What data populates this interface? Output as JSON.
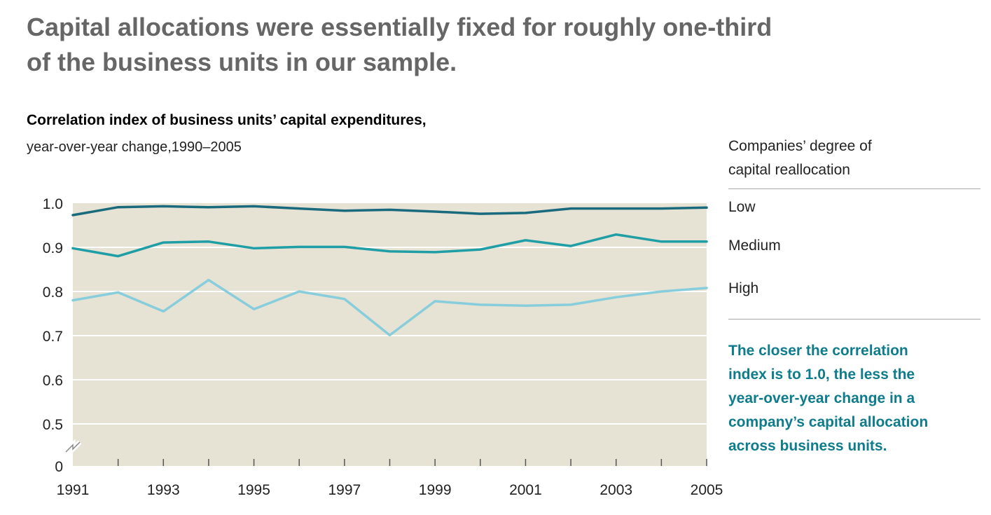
{
  "headline": {
    "line1": "Capital allocations were essentially fixed for roughly one-third",
    "line2": "of the business units in our sample."
  },
  "chart_title": "Correlation index of business units’ capital expenditures,",
  "chart_subtitle": "year-over-year change,1990–2005",
  "legend": {
    "title_line1": "Companies’ degree of",
    "title_line2": "capital reallocation"
  },
  "note": {
    "line1": "The closer the correlation",
    "line2": "index is to 1.0, the less the",
    "line3": "year-over-year change in a",
    "line4": "company’s capital allocation",
    "line5": "across business units."
  },
  "colors": {
    "plot_background": "#e6e3d4",
    "gridline": "#ffffff",
    "low": "#1a6a7e",
    "medium": "#1f9ea6",
    "high": "#87cddc"
  },
  "chart_data": {
    "type": "line",
    "x": [
      1991,
      1992,
      1993,
      1994,
      1995,
      1996,
      1997,
      1998,
      1999,
      2000,
      2001,
      2002,
      2003,
      2004,
      2005
    ],
    "xtick_labels": [
      "1991",
      "1993",
      "1995",
      "1997",
      "1999",
      "2001",
      "2003",
      "2005"
    ],
    "yticks": [
      1.0,
      0.9,
      0.8,
      0.7,
      0.6,
      0.5
    ],
    "ytick_labels": [
      "1.0",
      "0.9",
      "0.8",
      "0.7",
      "0.6",
      "0.5",
      "0"
    ],
    "ylim": [
      0.4,
      1.0
    ],
    "y_axis_break": true,
    "grid": true,
    "series": [
      {
        "name": "Low",
        "color_key": "low",
        "values": [
          0.973,
          0.991,
          0.993,
          0.991,
          0.993,
          0.988,
          0.983,
          0.985,
          0.981,
          0.976,
          0.978,
          0.988,
          0.988,
          0.988,
          0.99
        ]
      },
      {
        "name": "Medium",
        "color_key": "medium",
        "values": [
          0.898,
          0.88,
          0.911,
          0.913,
          0.898,
          0.901,
          0.901,
          0.891,
          0.889,
          0.895,
          0.916,
          0.903,
          0.929,
          0.913,
          0.913
        ]
      },
      {
        "name": "High",
        "color_key": "high",
        "values": [
          0.78,
          0.798,
          0.755,
          0.826,
          0.76,
          0.8,
          0.783,
          0.701,
          0.778,
          0.77,
          0.768,
          0.77,
          0.787,
          0.8,
          0.808
        ]
      }
    ]
  }
}
